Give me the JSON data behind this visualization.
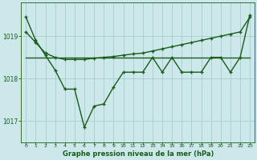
{
  "background_color": "#cce8ea",
  "plot_bg_color": "#cce8ea",
  "line_color": "#1a5c1a",
  "grid_color": "#aacccc",
  "title": "Graphe pression niveau de la mer (hPa)",
  "ylim": [
    1016.5,
    1019.8
  ],
  "xlim": [
    -0.5,
    23.5
  ],
  "yticks": [
    1017,
    1018,
    1019
  ],
  "xtick_labels": [
    "0",
    "1",
    "2",
    "3",
    "4",
    "5",
    "6",
    "7",
    "8",
    "9",
    "10",
    "11",
    "12",
    "13",
    "14",
    "15",
    "16",
    "17",
    "18",
    "19",
    "20",
    "21",
    "22",
    "23"
  ],
  "series1_x": [
    0,
    1,
    2,
    3,
    4,
    5,
    6,
    7,
    8,
    9,
    10,
    11,
    12,
    13,
    14,
    15,
    16,
    17,
    18,
    19,
    20,
    21,
    22,
    23
  ],
  "series1_y": [
    1019.45,
    1018.9,
    1018.55,
    1018.2,
    1017.75,
    1017.75,
    1016.85,
    1017.35,
    1017.4,
    1017.8,
    1018.15,
    1018.15,
    1018.15,
    1018.5,
    1018.15,
    1018.5,
    1018.15,
    1018.15,
    1018.15,
    1018.5,
    1018.5,
    1018.15,
    1018.5,
    1019.5
  ],
  "series2_x": [
    0,
    1,
    2,
    3,
    4,
    5,
    6,
    7,
    8,
    9,
    10,
    11,
    12,
    13,
    14,
    15,
    16,
    17,
    18,
    19,
    20,
    21,
    22,
    23
  ],
  "series2_y": [
    1019.1,
    1018.85,
    1018.6,
    1018.5,
    1018.45,
    1018.45,
    1018.45,
    1018.48,
    1018.5,
    1018.52,
    1018.55,
    1018.58,
    1018.6,
    1018.65,
    1018.7,
    1018.75,
    1018.8,
    1018.85,
    1018.9,
    1018.95,
    1019.0,
    1019.05,
    1019.1,
    1019.45
  ],
  "series3_x": [
    0,
    23
  ],
  "series3_y": [
    1018.5,
    1018.5
  ],
  "marker_size": 2.5,
  "line_width": 1.0
}
